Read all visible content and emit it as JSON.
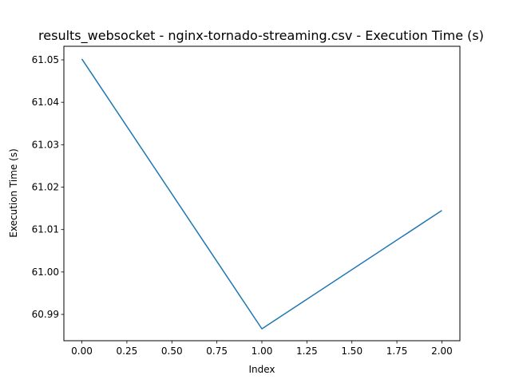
{
  "chart_data": {
    "type": "line",
    "title": "results_websocket - nginx-tornado-streaming.csv - Execution Time (s)",
    "xlabel": "Index",
    "ylabel": "Execution Time (s)",
    "xlim": [
      -0.1,
      2.1
    ],
    "ylim": [
      60.9838,
      61.0532
    ],
    "x_ticks": [
      "0.00",
      "0.25",
      "0.50",
      "0.75",
      "1.00",
      "1.25",
      "1.50",
      "1.75",
      "2.00"
    ],
    "y_ticks": [
      "60.99",
      "61.00",
      "61.01",
      "61.02",
      "61.03",
      "61.04",
      "61.05"
    ],
    "grid": false,
    "legend": "none",
    "series": [
      {
        "color": "#1f77b4",
        "x": [
          0,
          1,
          2
        ],
        "y": [
          61.0502,
          60.9866,
          61.0145
        ]
      }
    ]
  }
}
